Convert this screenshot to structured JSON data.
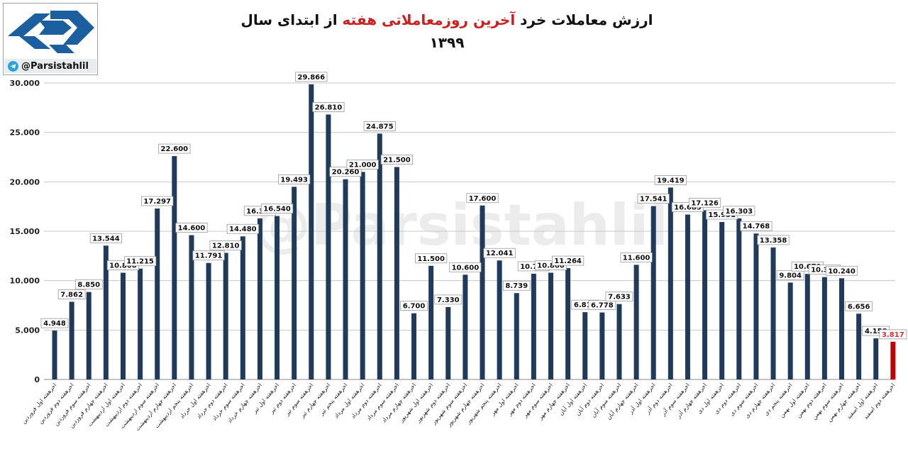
{
  "header": {
    "title_part1": "ارزش معاملات خرد ",
    "title_highlight": "آخرین روزمعاملاتی هفته",
    "title_part2": " از ابتدای سال ۱۳۹۹",
    "handle": "@Parsistahlil",
    "watermark": "@Parsistahlil"
  },
  "colors": {
    "bar": "#1f3a5a",
    "bar_highlight": "#c00000",
    "label_highlight": "#e03030",
    "grid": "#c8c8c8",
    "brand": "#1c5f9e"
  },
  "chart_data": {
    "type": "bar",
    "title": "ارزش معاملات خرد آخرین روزمعاملاتی هفته از ابتدای سال ۱۳۹۹",
    "xlabel": "",
    "ylabel": "",
    "ylim": [
      0,
      30000
    ],
    "yticks": [
      "0",
      "5.000",
      "10.000",
      "15.000",
      "20.000",
      "25.000",
      "30.000"
    ],
    "grid": true,
    "highlight_index": 49,
    "categories": [
      "اخرهفته اول فروردین",
      "اخرهفته دوم فروردین",
      "اخرهفته سوم فروردین",
      "اخرهفته چهارم فروردین",
      "اخرهفته اول اردیبهشت",
      "اخرهفته دوم اردیبهشت",
      "اخرهفته سوم اردیبهشت",
      "اخرهفته چهارم اردیبهشت",
      "اخرهفته پنجم اردیبهشت",
      "اخرهفته اول خرداد",
      "اخرهفته دوم خرداد",
      "اخرهفته سوم خرداد",
      "اخرهفته چهارم خرداد",
      "اخرهفته اول تیر",
      "اخرهفته دوم تیر",
      "اخرهفته سوم تیر",
      "اخرهفته چهارم تیر",
      "اخرهفته پنجم تیر",
      "اخرهفته اول مرداد",
      "اخرهفته دوم مرداد",
      "اخرهفته سوم مرداد",
      "اخرهفته چهارم مرداد",
      "اخرهفته اول شهریور",
      "اخرهفته دوم شهریور",
      "اخرهفته سوم شهریور",
      "اخرهفته چهارم شهریور",
      "اخرهفته پنجم شهریور",
      "اخرهفته اول مهر",
      "اخرهفته دوم مهر",
      "اخرهفته سوم مهر",
      "اخرهفته چهارم مهر",
      "اخرهفته اول آبان",
      "اخرهفته دوم آبان",
      "اخرهفته سوم آبان",
      "اخرهفته چهارم آبان",
      "اخرهفته اول آذر",
      "اخرهفته دوم آذر",
      "اخرهفته سوم آذر",
      "اخرهفته چهارم آذر",
      "اخرهفته اول دی",
      "اخرهفته دوم دی",
      "اخرهفته سوم دی",
      "اخرهفته چهارم دی",
      "اخرهفته پنجم دی",
      "اخرهفته اول بهمن",
      "اخرهفته دوم بهمن",
      "اخرهفته سوم بهمن",
      "اخرهفته چهارم بهمن",
      "اخرهفته اول اسفند",
      "اخرهفته دوم اسفند"
    ],
    "values": [
      4948,
      7862,
      8850,
      13544,
      10800,
      11215,
      17297,
      22600,
      14600,
      11791,
      12810,
      14480,
      16300,
      16540,
      19493,
      29866,
      26810,
      20260,
      21000,
      24875,
      21500,
      6700,
      11500,
      7330,
      10600,
      17600,
      12041,
      8739,
      10700,
      10800,
      11264,
      6810,
      6778,
      7633,
      11600,
      17541,
      19419,
      16685,
      17126,
      15931,
      16303,
      14768,
      13358,
      9804,
      10679,
      10360,
      10240,
      6656,
      4158,
      3817
    ],
    "labels": [
      "4.948",
      "7.862",
      "8.850",
      "13.544",
      "10.800",
      "11.215",
      "17.297",
      "22.600",
      "14.600",
      "11.791",
      "12.810",
      "14.480",
      "16.300",
      "16.540",
      "19.493",
      "29.866",
      "26.810",
      "20.260",
      "21.000",
      "24.875",
      "21.500",
      "6.700",
      "11.500",
      "7.330",
      "10.600",
      "17.600",
      "12.041",
      "8.739",
      "10.700",
      "10.800",
      "11.264",
      "6.810",
      "6.778",
      "7.633",
      "11.600",
      "17.541",
      "19.419",
      "16.685",
      "17.126",
      "15.931",
      "16.303",
      "14.768",
      "13.358",
      "9.804",
      "10.679",
      "10.360",
      "10.240",
      "6.656",
      "4.158",
      "3.817"
    ]
  }
}
